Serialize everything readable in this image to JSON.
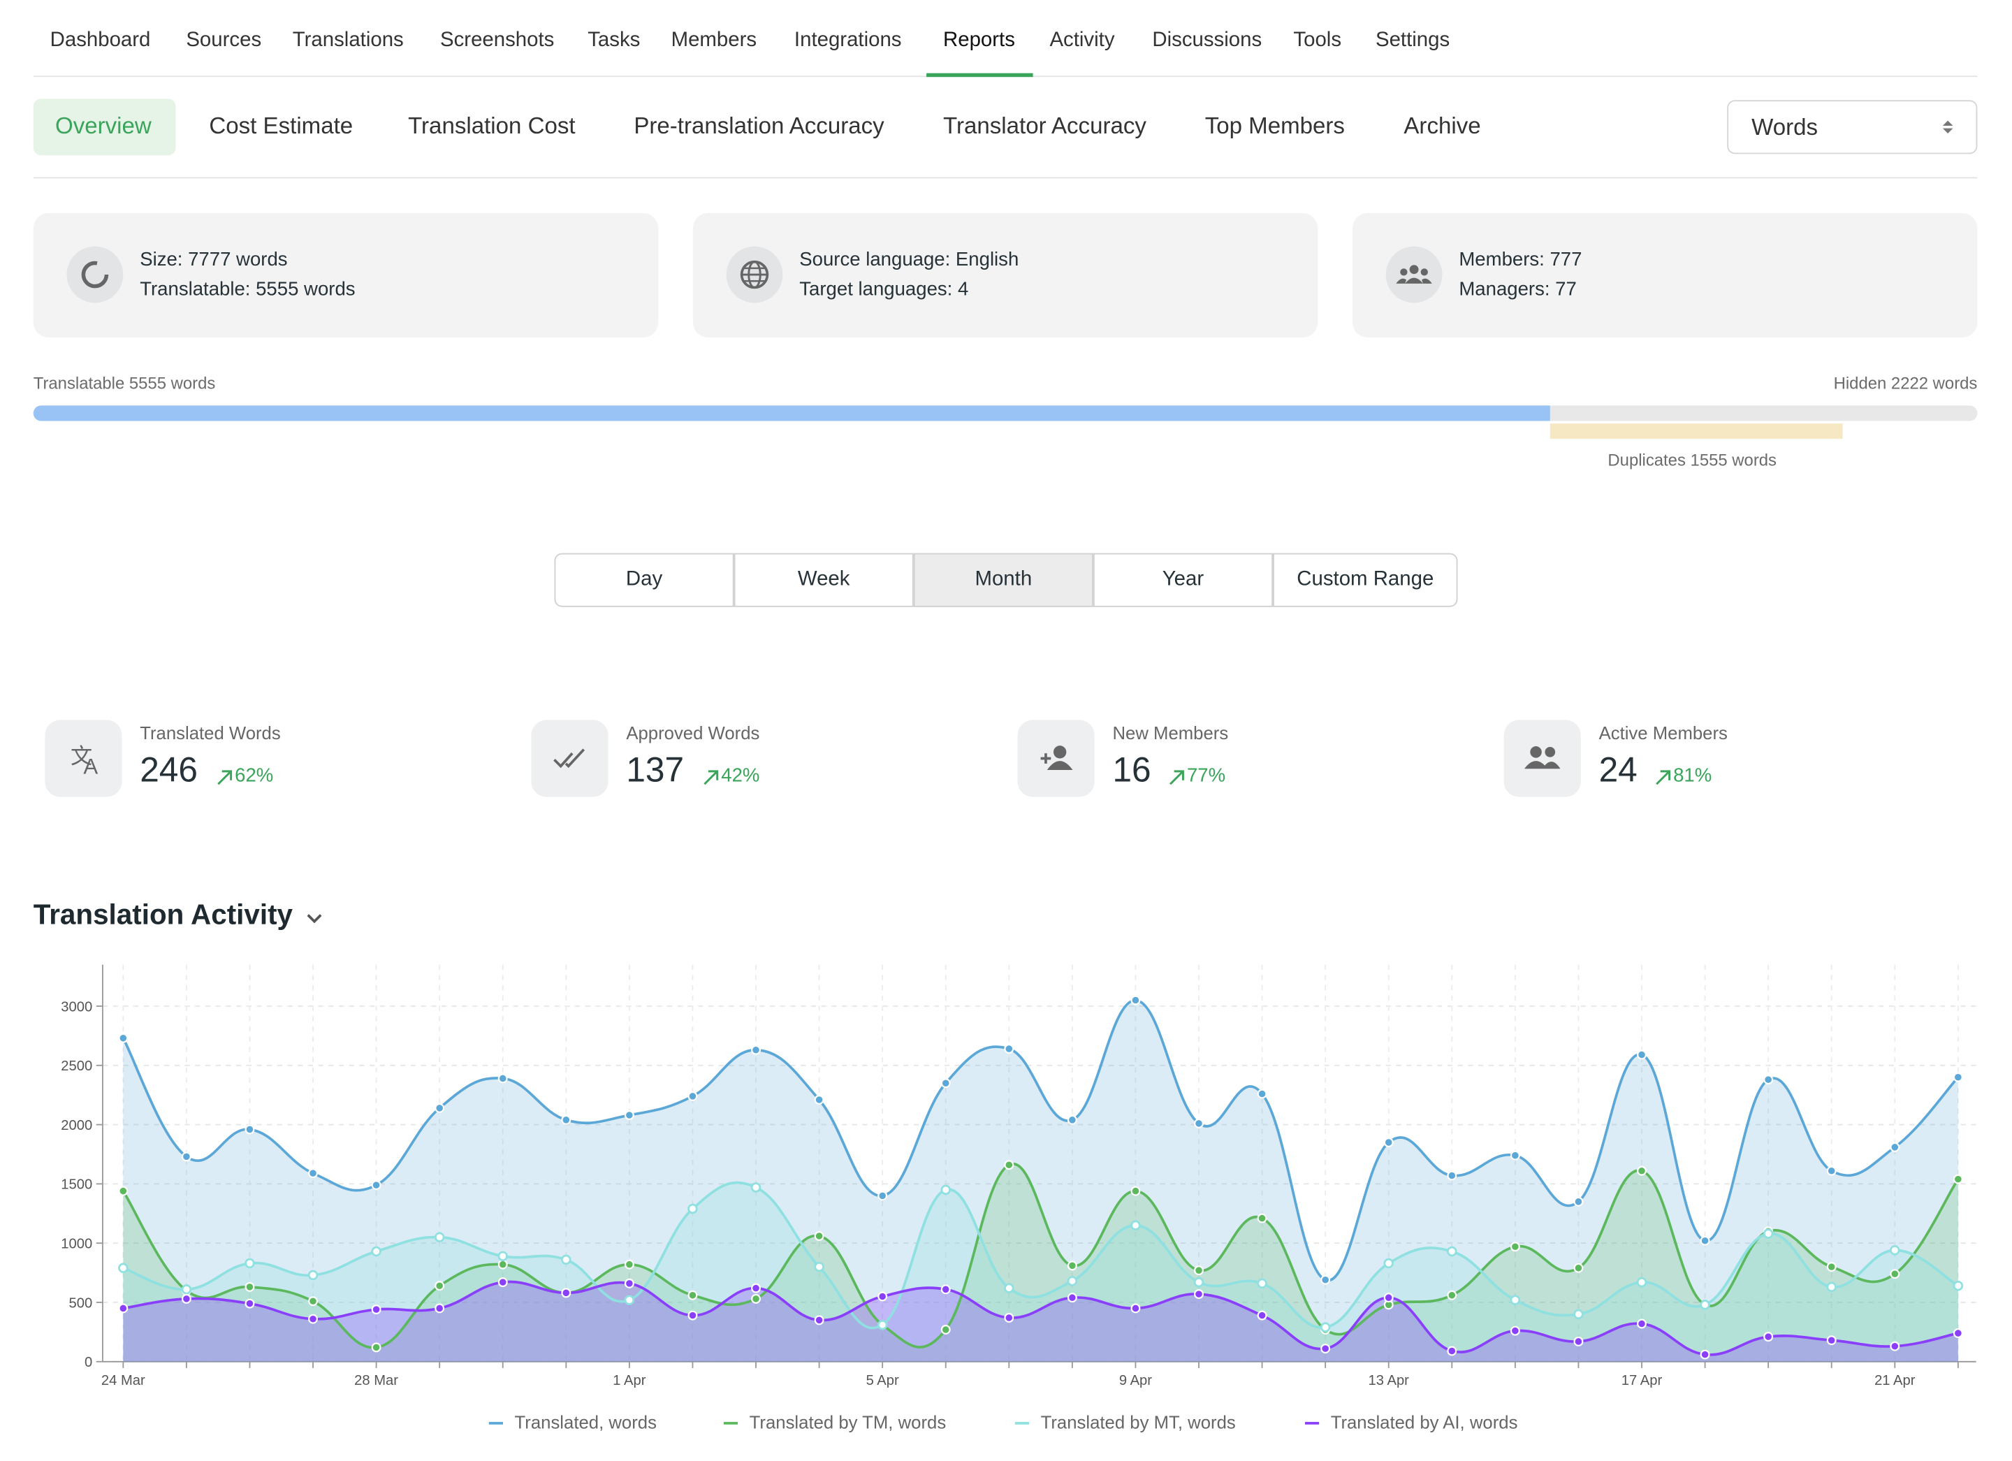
{
  "nav": {
    "tabs": [
      "Dashboard",
      "Sources",
      "Translations",
      "Screenshots",
      "Tasks",
      "Members",
      "Integrations",
      "Reports",
      "Activity",
      "Discussions",
      "Tools",
      "Settings"
    ]
  },
  "subnav": {
    "tabs": [
      "Overview",
      "Cost Estimate",
      "Translation Cost",
      "Pre-translation Accuracy",
      "Translator Accuracy",
      "Top Members",
      "Archive"
    ],
    "unit_select": "Words"
  },
  "info_cards": [
    {
      "lines": [
        "Size: 7777 words",
        "Translatable: 5555 words"
      ]
    },
    {
      "lines": [
        "Source language: English",
        "Target languages: 4"
      ]
    },
    {
      "lines": [
        "Members: 777",
        "Managers: 77"
      ]
    }
  ],
  "progress": {
    "translatable": "Translatable 5555 words",
    "hidden": "Hidden 2222 words",
    "duplicates": "Duplicates 1555 words"
  },
  "periods": [
    "Day",
    "Week",
    "Month",
    "Year",
    "Custom Range"
  ],
  "stats": [
    {
      "label": "Translated Words",
      "value": 246,
      "change": "62%"
    },
    {
      "label": "Approved Words",
      "value": 137,
      "change": "42%"
    },
    {
      "label": "New Members",
      "value": 16,
      "change": "77%"
    },
    {
      "label": "Active Members",
      "value": 24,
      "change": "81%"
    }
  ],
  "chart_data": {
    "type": "line",
    "title": "Translation Activity",
    "categories": [
      "24 Mar",
      null,
      null,
      null,
      "28 Mar",
      null,
      null,
      null,
      "1 Apr",
      null,
      null,
      null,
      "5 Apr",
      null,
      null,
      null,
      "9 Apr",
      null,
      null,
      null,
      "13 Apr",
      null,
      null,
      null,
      "17 Apr",
      null,
      null,
      null,
      "21 Apr",
      null
    ],
    "series": [
      {
        "name": "Translated, words",
        "color": "#5aa7d8",
        "values": [
          2730,
          1730,
          1960,
          1590,
          1490,
          2140,
          2390,
          2040,
          2080,
          2240,
          2630,
          2210,
          1400,
          2350,
          2640,
          2040,
          3050,
          2010,
          2260,
          690,
          1850,
          1570,
          1740,
          1350,
          2590,
          1020,
          2380,
          1610,
          1810,
          2400
        ]
      },
      {
        "name": "Translated by TM, words",
        "color": "#5cb85c",
        "values": [
          1440,
          600,
          630,
          510,
          120,
          640,
          820,
          580,
          820,
          560,
          530,
          1060,
          310,
          270,
          1660,
          810,
          1440,
          770,
          1210,
          270,
          480,
          560,
          970,
          790,
          1610,
          480,
          1100,
          800,
          740,
          1540
        ]
      },
      {
        "name": "Translated by MT, words",
        "color": "#8fe0e0",
        "values": [
          790,
          610,
          830,
          730,
          930,
          1050,
          890,
          860,
          520,
          1290,
          1470,
          800,
          310,
          1450,
          620,
          680,
          1150,
          670,
          660,
          290,
          830,
          930,
          520,
          400,
          670,
          480,
          1080,
          630,
          940,
          640
        ]
      },
      {
        "name": "Translated by AI, words",
        "color": "#8a3ffc",
        "values": [
          450,
          530,
          490,
          360,
          440,
          450,
          670,
          580,
          660,
          390,
          620,
          350,
          550,
          610,
          370,
          540,
          450,
          570,
          390,
          110,
          540,
          90,
          260,
          170,
          320,
          60,
          210,
          180,
          130,
          240
        ]
      }
    ],
    "ylim": [
      0,
      3350
    ],
    "yticks": [
      0,
      500,
      1000,
      1500,
      2000,
      2500,
      3000
    ],
    "grid": true
  }
}
